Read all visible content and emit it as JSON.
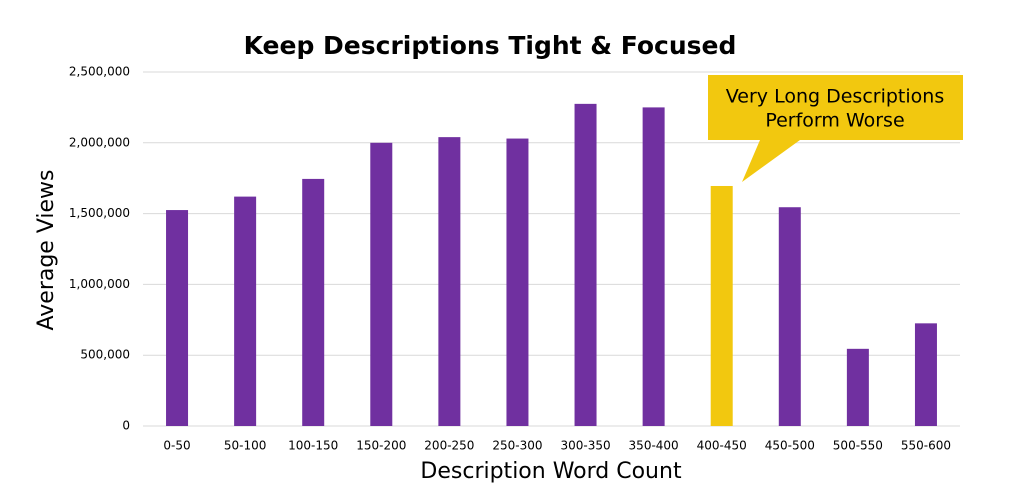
{
  "chart_data": {
    "type": "bar",
    "title": "Keep Descriptions Tight & Focused",
    "x_label": "Description Word Count",
    "y_label": "Average Views",
    "categories": [
      "0-50",
      "50-100",
      "100-150",
      "150-200",
      "200-250",
      "250-300",
      "300-350",
      "350-400",
      "400-450",
      "450-500",
      "500-550",
      "550-600"
    ],
    "values": [
      1525000,
      1620000,
      1745000,
      2000000,
      2040000,
      2030000,
      2275000,
      2250000,
      1695000,
      1545000,
      545000,
      725000
    ],
    "colors": [
      "#7030a0",
      "#7030a0",
      "#7030a0",
      "#7030a0",
      "#7030a0",
      "#7030a0",
      "#7030a0",
      "#7030a0",
      "#f2c80f",
      "#7030a0",
      "#7030a0",
      "#7030a0"
    ],
    "ylim": [
      0,
      2500000
    ],
    "yticks": [
      0,
      {
        "value": 500000,
        "label": "500,000"
      },
      {
        "value": 1000000,
        "label": "1,000,000"
      },
      {
        "value": 1500000,
        "label": "1,500,000"
      },
      {
        "value": 2000000,
        "label": "2,000,000"
      },
      {
        "value": 2500000,
        "label": "2,500,000"
      }
    ],
    "grid": true,
    "annotation": [
      "Very Long Descriptions",
      "Perform Worse"
    ]
  }
}
